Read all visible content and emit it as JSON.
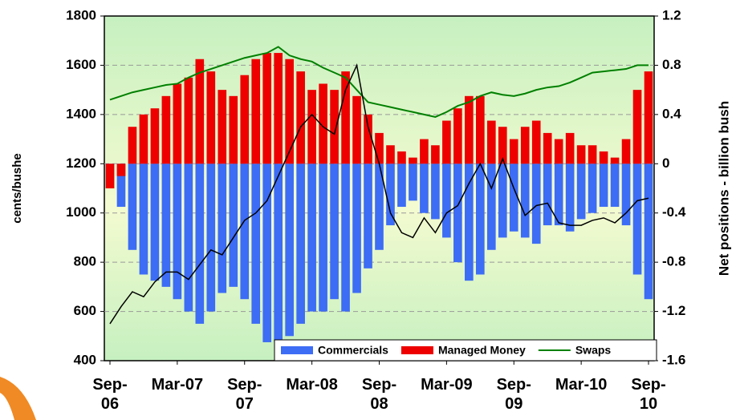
{
  "chart_data": {
    "type": "bar-line",
    "categories": [
      "Sep-\n06",
      null,
      null,
      null,
      null,
      null,
      "Mar-07",
      null,
      null,
      null,
      null,
      null,
      "Sep-\n07",
      null,
      null,
      null,
      null,
      null,
      "Mar-08",
      null,
      null,
      null,
      null,
      null,
      "Sep-\n08",
      null,
      null,
      null,
      null,
      null,
      "Mar-09",
      null,
      null,
      null,
      null,
      null,
      "Sep-\n09",
      null,
      null,
      null,
      null,
      null,
      "Mar-10",
      null,
      null,
      null,
      null,
      null,
      "Sep-\n10"
    ],
    "ylabel": "cents/bushe",
    "y2label": "Net positions - billion bush",
    "ylim": [
      400,
      1800
    ],
    "yticks": [
      400,
      600,
      800,
      1000,
      1200,
      1400,
      1600,
      1800
    ],
    "y2lim": [
      -1.6,
      1.2
    ],
    "y2ticks": [
      -1.6,
      -1.2,
      -0.8,
      -0.4,
      0,
      0.4,
      0.8,
      1.2
    ],
    "grid": true,
    "legend": "lower right",
    "series": [
      {
        "name": "Commercials",
        "kind": "bar",
        "axis": "y2",
        "color": "#3d6cf5",
        "values": [
          -0.2,
          -0.35,
          -0.7,
          -0.9,
          -0.95,
          -1.0,
          -1.1,
          -1.2,
          -1.3,
          -1.2,
          -1.05,
          -1.0,
          -1.1,
          -1.3,
          -1.45,
          -1.45,
          -1.4,
          -1.3,
          -1.2,
          -1.2,
          -1.1,
          -1.2,
          -1.05,
          -0.85,
          -0.7,
          -0.5,
          -0.35,
          -0.3,
          -0.4,
          -0.45,
          -0.6,
          -0.8,
          -0.95,
          -0.9,
          -0.7,
          -0.6,
          -0.55,
          -0.6,
          -0.65,
          -0.5,
          -0.5,
          -0.55,
          -0.45,
          -0.4,
          -0.35,
          -0.35,
          -0.5,
          -0.9,
          -1.1
        ]
      },
      {
        "name": "Managed Money",
        "kind": "bar",
        "axis": "y2",
        "color": "#ee0000",
        "values": [
          -0.2,
          -0.1,
          0.3,
          0.4,
          0.45,
          0.55,
          0.65,
          0.7,
          0.85,
          0.75,
          0.6,
          0.55,
          0.72,
          0.85,
          0.9,
          0.9,
          0.85,
          0.75,
          0.6,
          0.65,
          0.6,
          0.75,
          0.55,
          0.4,
          0.25,
          0.15,
          0.1,
          0.05,
          0.2,
          0.15,
          0.35,
          0.45,
          0.55,
          0.55,
          0.35,
          0.3,
          0.2,
          0.3,
          0.35,
          0.25,
          0.2,
          0.25,
          0.15,
          0.15,
          0.1,
          0.05,
          0.2,
          0.6,
          0.75
        ]
      },
      {
        "name": "Swaps",
        "kind": "line",
        "axis": "y2",
        "color": "#008000",
        "values": [
          0.52,
          0.55,
          0.58,
          0.6,
          0.62,
          0.64,
          0.65,
          0.7,
          0.74,
          0.77,
          0.8,
          0.83,
          0.86,
          0.88,
          0.9,
          0.95,
          0.88,
          0.85,
          0.83,
          0.78,
          0.74,
          0.7,
          0.6,
          0.5,
          0.48,
          0.46,
          0.44,
          0.42,
          0.4,
          0.38,
          0.42,
          0.47,
          0.5,
          0.55,
          0.58,
          0.56,
          0.55,
          0.57,
          0.6,
          0.62,
          0.63,
          0.66,
          0.7,
          0.74,
          0.75,
          0.76,
          0.77,
          0.8,
          0.8
        ]
      },
      {
        "kind": "line",
        "axis": "y",
        "color": "#000000",
        "values": [
          550,
          620,
          680,
          660,
          720,
          760,
          760,
          730,
          790,
          850,
          830,
          900,
          970,
          1000,
          1050,
          1150,
          1250,
          1350,
          1400,
          1350,
          1320,
          1500,
          1600,
          1350,
          1200,
          1000,
          920,
          900,
          980,
          920,
          1000,
          1030,
          1120,
          1200,
          1100,
          1220,
          1100,
          990,
          1030,
          1040,
          960,
          950,
          950,
          970,
          980,
          960,
          1000,
          1050,
          1060
        ]
      }
    ]
  }
}
